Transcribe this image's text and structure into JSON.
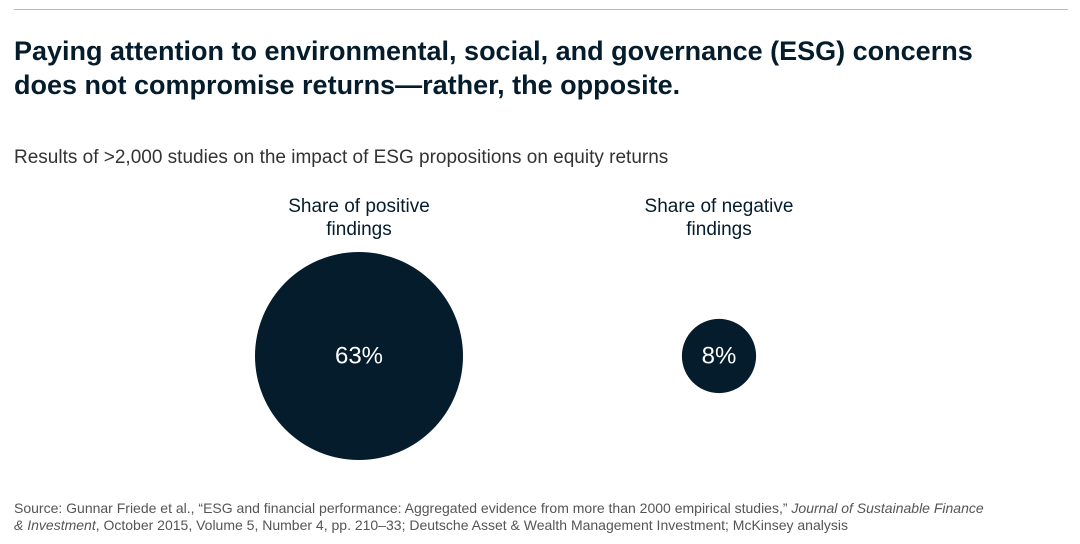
{
  "header": {
    "title_line1": "Paying attention to environmental, social, and governance (ESG) concerns",
    "title_line2": "does not compromise returns—rather, the opposite.",
    "subtitle": "Results of >2,000 studies on the impact of ESG propositions on equity returns"
  },
  "chart_data": {
    "type": "bubble",
    "title": "Paying attention to environmental, social, and governance (ESG) concerns does not compromise returns—rather, the opposite.",
    "subtitle": "Results of >2,000 studies on the impact of ESG propositions on equity returns",
    "series": [
      {
        "name": "Share of positive findings",
        "label_line1": "Share of positive",
        "label_line2": "findings",
        "value": 63,
        "value_label": "63%"
      },
      {
        "name": "Share of negative findings",
        "label_line1": "Share of negative",
        "label_line2": "findings",
        "value": 8,
        "value_label": "8%"
      }
    ],
    "unit": "%",
    "bubble_color": "#051c2c"
  },
  "source": {
    "prefix": "Source: Gunnar Friede et al., “ESG and financial performance: Aggregated evidence from more than 2000 empirical studies,” ",
    "journal_part1": "Journal of Sustainable Finance",
    "journal_part2": "& Investment",
    "suffix": ", October 2015, Volume 5, Number 4, pp. 210–33; Deutsche Asset & Wealth Management Investment; McKinsey analysis"
  }
}
